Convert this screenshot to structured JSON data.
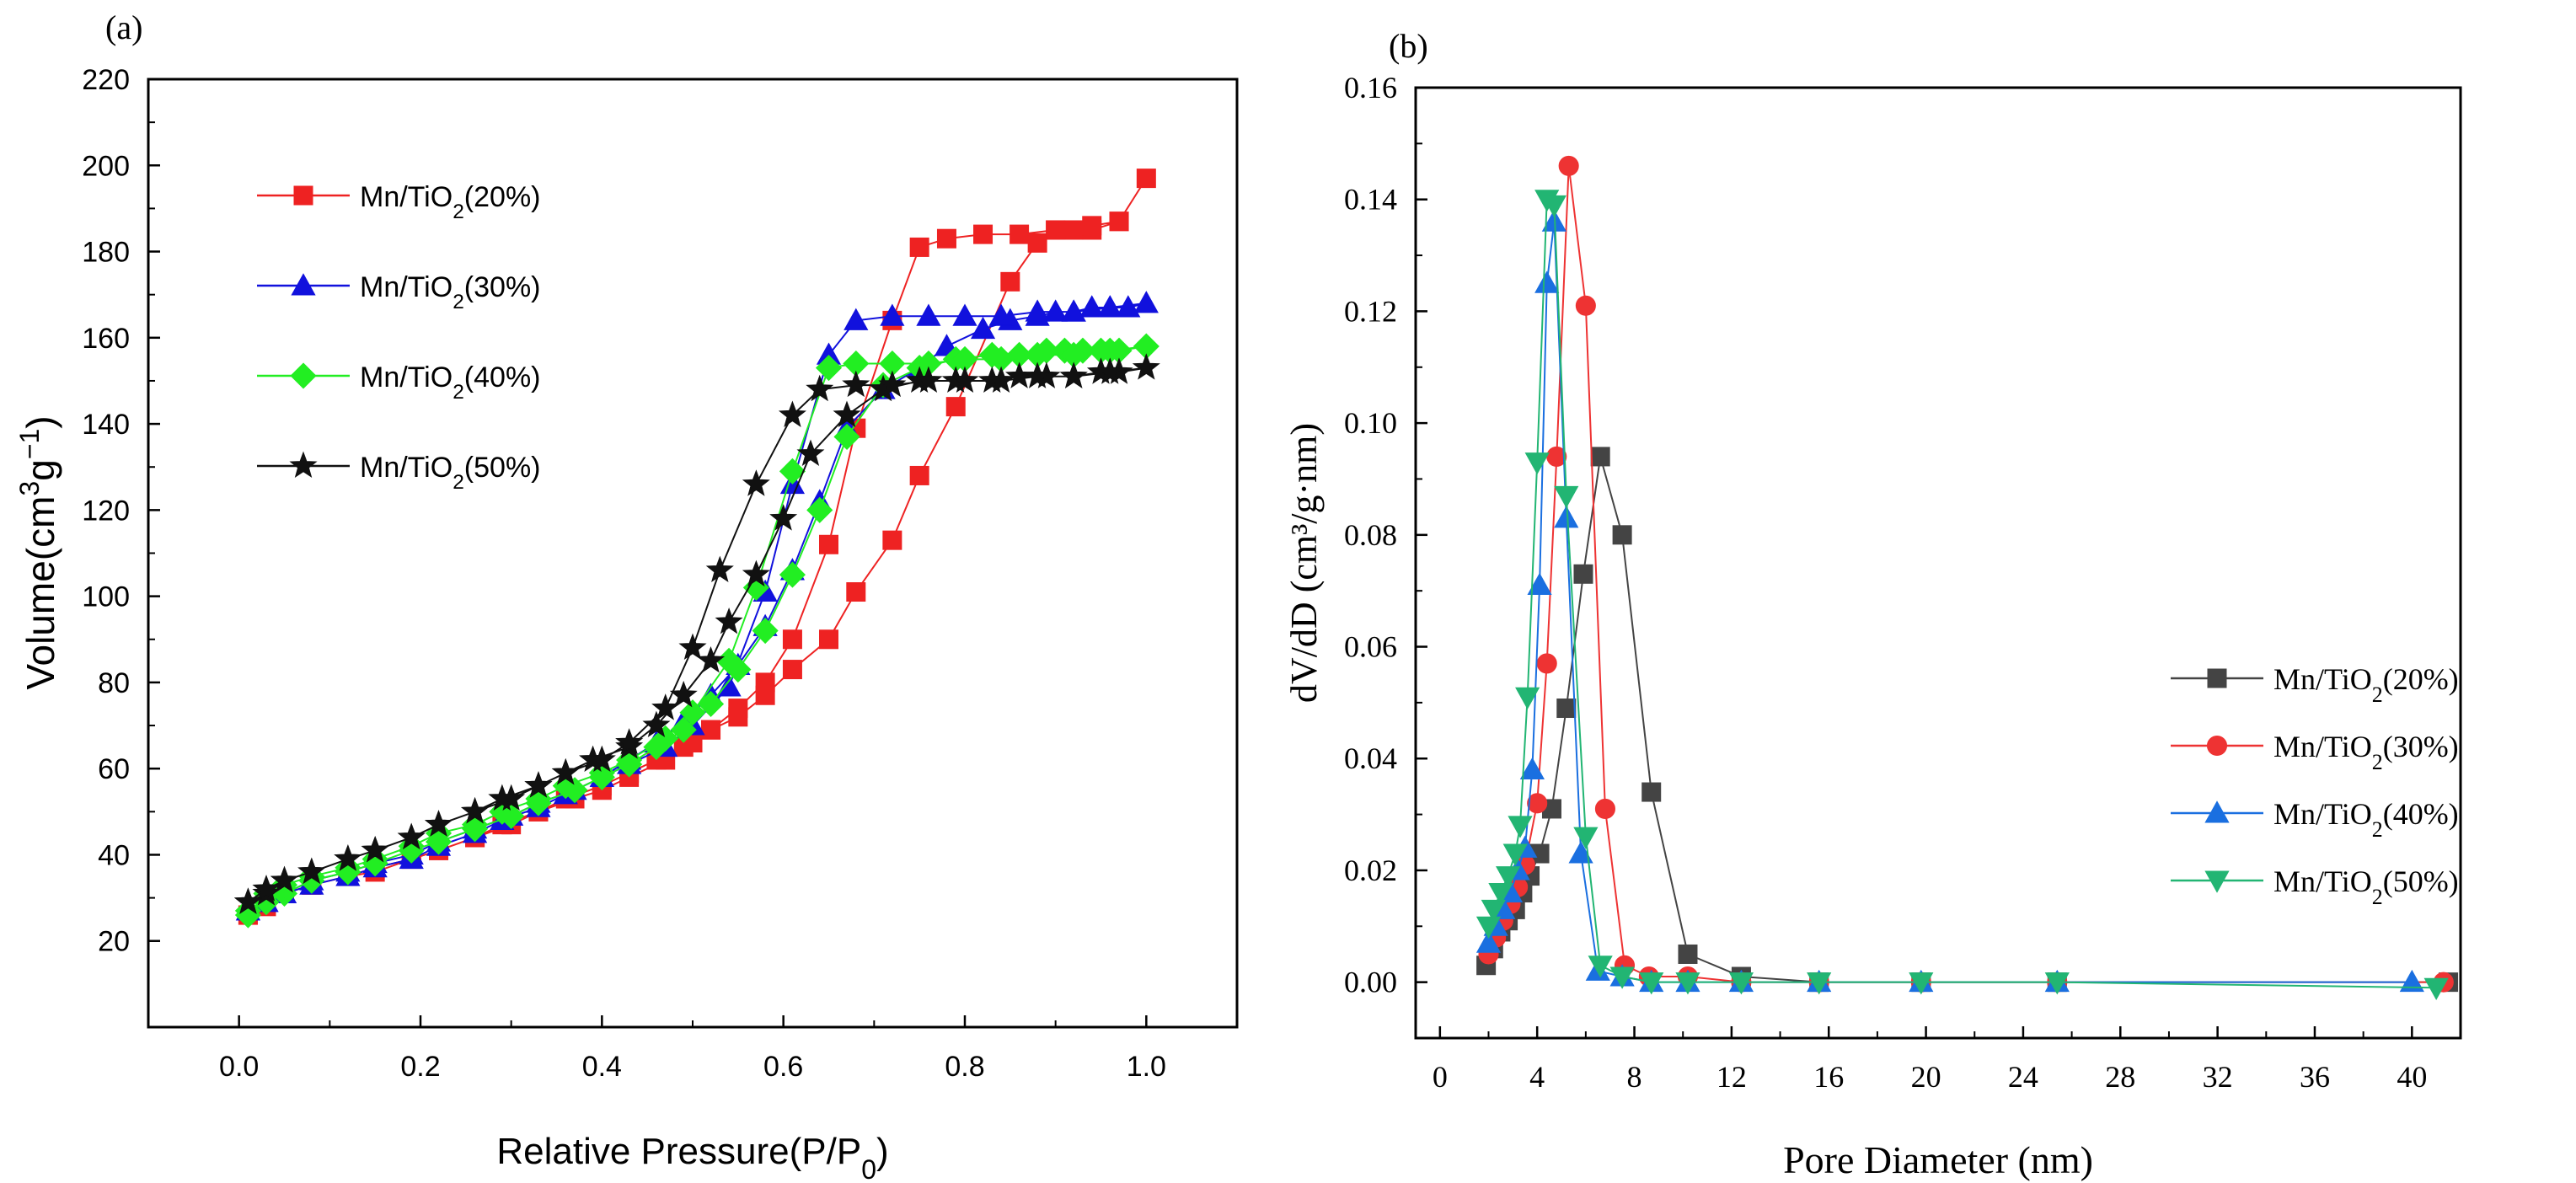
{
  "chart_data": [
    {
      "type": "line",
      "panel_label": "(a)",
      "xlabel": "Relative Pressure(P/P",
      "xlabel_sub": "0",
      "xlabel_tail": ")",
      "ylabel": "Volume(cm",
      "ylabel_sup": "3",
      "ylabel_mid": "g",
      "ylabel_sup2": "−1",
      "ylabel_tail": ")",
      "xlim": [
        -0.1,
        1.1
      ],
      "ylim": [
        0,
        220
      ],
      "xticks": [
        0.0,
        0.2,
        0.4,
        0.6,
        0.8,
        1.0
      ],
      "xtick_labels": [
        "0.0",
        "0.2",
        "0.4",
        "0.6",
        "0.8",
        "1.0"
      ],
      "yticks": [
        20,
        40,
        60,
        80,
        100,
        120,
        140,
        160,
        180,
        200,
        220
      ],
      "ytick_labels": [
        "20",
        "40",
        "60",
        "80",
        "100",
        "120",
        "140",
        "160",
        "180",
        "200",
        "220"
      ],
      "legend_position": "upper-left",
      "series": [
        {
          "name": "Mn/TiO2(20%)",
          "label_main": "Mn/TiO",
          "label_sub": "2",
          "label_tail": "(20%)",
          "color": "#ee2222",
          "marker": "square",
          "x": [
            0.01,
            0.03,
            0.05,
            0.08,
            0.12,
            0.15,
            0.19,
            0.22,
            0.26,
            0.3,
            0.33,
            0.37,
            0.4,
            0.43,
            0.47,
            0.5,
            0.52,
            0.55,
            0.58,
            0.61,
            0.65,
            0.68,
            0.72,
            0.75,
            0.79,
            0.85,
            0.88,
            0.9,
            0.92,
            0.94,
            0.97,
            1.0,
            0.97,
            0.94,
            0.9,
            0.86,
            0.82,
            0.78,
            0.75,
            0.72,
            0.68,
            0.65,
            0.61,
            0.58,
            0.55,
            0.52,
            0.49,
            0.46,
            0.43,
            0.4,
            0.36,
            0.33,
            0.29,
            0.26,
            0.22,
            0.19,
            0.15,
            0.12,
            0.08,
            0.05,
            0.03,
            0.01
          ],
          "y": [
            26,
            28,
            31,
            33,
            35,
            37,
            39,
            41,
            44,
            47,
            50,
            53,
            55,
            58,
            62,
            66,
            69,
            72,
            77,
            83,
            90,
            101,
            113,
            128,
            144,
            173,
            182,
            185,
            185,
            185,
            187,
            197,
            187,
            186,
            185,
            184,
            184,
            183,
            181,
            164,
            139,
            112,
            90,
            80,
            74,
            69,
            65,
            62,
            59,
            56,
            53,
            50,
            47,
            44,
            41,
            39,
            36,
            35,
            33,
            31,
            29,
            26
          ]
        },
        {
          "name": "Mn/TiO2(30%)",
          "label_main": "Mn/TiO",
          "label_sub": "2",
          "label_tail": "(30%)",
          "color": "#1111dd",
          "marker": "triangle-up",
          "x": [
            0.01,
            0.03,
            0.05,
            0.08,
            0.12,
            0.15,
            0.19,
            0.22,
            0.26,
            0.3,
            0.33,
            0.37,
            0.4,
            0.43,
            0.46,
            0.49,
            0.52,
            0.55,
            0.58,
            0.61,
            0.64,
            0.67,
            0.71,
            0.75,
            0.78,
            0.82,
            0.85,
            0.88,
            0.9,
            0.92,
            0.94,
            0.96,
            0.98,
            1.0,
            0.96,
            0.92,
            0.88,
            0.84,
            0.8,
            0.76,
            0.72,
            0.68,
            0.65,
            0.61,
            0.58,
            0.54,
            0.5,
            0.47,
            0.43,
            0.4,
            0.36,
            0.33,
            0.29,
            0.26,
            0.22,
            0.19,
            0.15,
            0.12,
            0.08,
            0.05,
            0.03,
            0.01
          ],
          "y": [
            27,
            29,
            31,
            34,
            36,
            38,
            40,
            43,
            46,
            49,
            52,
            55,
            58,
            62,
            66,
            71,
            77,
            84,
            93,
            106,
            122,
            139,
            148,
            153,
            158,
            162,
            164,
            165,
            166,
            166,
            167,
            167,
            167,
            168,
            167,
            166,
            166,
            165,
            165,
            165,
            165,
            164,
            156,
            126,
            101,
            79,
            70,
            65,
            61,
            58,
            54,
            51,
            48,
            45,
            42,
            39,
            37,
            35,
            33,
            31,
            29,
            27
          ]
        },
        {
          "name": "Mn/TiO2(40%)",
          "label_main": "Mn/TiO",
          "label_sub": "2",
          "label_tail": "(40%)",
          "color": "#22ee22",
          "marker": "diamond",
          "x": [
            0.01,
            0.03,
            0.05,
            0.08,
            0.12,
            0.15,
            0.19,
            0.22,
            0.26,
            0.3,
            0.33,
            0.37,
            0.4,
            0.43,
            0.46,
            0.49,
            0.52,
            0.55,
            0.58,
            0.61,
            0.64,
            0.67,
            0.71,
            0.75,
            0.79,
            0.83,
            0.86,
            0.89,
            0.91,
            0.93,
            0.95,
            0.97,
            1.0,
            0.96,
            0.92,
            0.88,
            0.84,
            0.8,
            0.76,
            0.72,
            0.68,
            0.65,
            0.61,
            0.57,
            0.54,
            0.5,
            0.47,
            0.43,
            0.4,
            0.36,
            0.33,
            0.29,
            0.26,
            0.22,
            0.19,
            0.15,
            0.12,
            0.08,
            0.05,
            0.03,
            0.01
          ],
          "y": [
            27,
            29,
            31,
            34,
            36,
            38,
            41,
            43,
            46,
            49,
            52,
            55,
            58,
            61,
            65,
            69,
            75,
            83,
            92,
            105,
            120,
            137,
            149,
            153,
            155,
            156,
            156,
            157,
            157,
            157,
            157,
            157,
            158,
            157,
            156,
            156,
            155,
            155,
            154,
            154,
            154,
            153,
            129,
            102,
            85,
            73,
            67,
            62,
            59,
            56,
            53,
            50,
            47,
            45,
            42,
            39,
            37,
            35,
            33,
            31,
            26
          ]
        },
        {
          "name": "Mn/TiO2(50%)",
          "label_main": "Mn/TiO",
          "label_sub": "2",
          "label_tail": "(50%)",
          "color": "#111111",
          "marker": "star",
          "x": [
            0.01,
            0.03,
            0.05,
            0.08,
            0.12,
            0.15,
            0.19,
            0.22,
            0.26,
            0.3,
            0.33,
            0.36,
            0.39,
            0.43,
            0.46,
            0.49,
            0.52,
            0.54,
            0.57,
            0.6,
            0.63,
            0.67,
            0.71,
            0.75,
            0.79,
            0.83,
            0.86,
            0.89,
            0.92,
            0.95,
            0.97,
            1.0,
            0.96,
            0.92,
            0.88,
            0.84,
            0.8,
            0.76,
            0.72,
            0.68,
            0.64,
            0.61,
            0.57,
            0.53,
            0.5,
            0.47,
            0.43,
            0.4,
            0.36,
            0.33,
            0.29,
            0.26,
            0.22,
            0.19,
            0.15,
            0.12,
            0.08,
            0.05,
            0.03,
            0.01
          ],
          "y": [
            29,
            31,
            34,
            36,
            39,
            41,
            44,
            47,
            50,
            53,
            56,
            59,
            62,
            65,
            70,
            77,
            85,
            94,
            105,
            118,
            133,
            142,
            148,
            150,
            150,
            150,
            151,
            151,
            151,
            152,
            152,
            153,
            152,
            151,
            151,
            150,
            150,
            150,
            149,
            149,
            148,
            142,
            126,
            106,
            88,
            74,
            66,
            62,
            59,
            56,
            53,
            50,
            47,
            44,
            41,
            39,
            36,
            34,
            32,
            29
          ]
        }
      ]
    },
    {
      "type": "line",
      "panel_label": "(b)",
      "xlabel": "Pore Diameter (nm)",
      "ylabel": "dV/dD (cm³/g·nm)",
      "xlim": [
        -1,
        42
      ],
      "ylim": [
        -0.01,
        0.16
      ],
      "xticks": [
        0,
        4,
        8,
        12,
        16,
        20,
        24,
        28,
        32,
        36,
        40
      ],
      "xtick_labels": [
        "0",
        "4",
        "8",
        "12",
        "16",
        "20",
        "24",
        "28",
        "32",
        "36",
        "40"
      ],
      "yticks": [
        0.0,
        0.02,
        0.04,
        0.06,
        0.08,
        0.1,
        0.12,
        0.14,
        0.16
      ],
      "ytick_labels": [
        "0.00",
        "0.02",
        "0.04",
        "0.06",
        "0.08",
        "0.10",
        "0.12",
        "0.14",
        "0.16"
      ],
      "legend_position": "lower-right",
      "series": [
        {
          "name": "Mn/TiO2(20%)",
          "label_main": "Mn/TiO",
          "label_sub": "2",
          "label_tail": "(20%)",
          "color": "#444444",
          "marker": "square",
          "x": [
            1.9,
            2.2,
            2.5,
            2.8,
            3.1,
            3.4,
            3.7,
            4.1,
            4.6,
            5.2,
            5.9,
            6.6,
            7.5,
            8.7,
            10.2,
            12.4,
            15.6,
            19.8,
            25.4,
            41.5
          ],
          "y": [
            0.003,
            0.006,
            0.009,
            0.011,
            0.013,
            0.016,
            0.019,
            0.023,
            0.031,
            0.049,
            0.073,
            0.094,
            0.08,
            0.034,
            0.005,
            0.001,
            0.0,
            0.0,
            0.0,
            0.0
          ]
        },
        {
          "name": "Mn/TiO2(30%)",
          "label_main": "Mn/TiO",
          "label_sub": "2",
          "label_tail": "(30%)",
          "color": "#ee3333",
          "marker": "circle",
          "x": [
            2.0,
            2.3,
            2.6,
            2.9,
            3.2,
            3.5,
            4.0,
            4.4,
            4.8,
            5.3,
            6.0,
            6.8,
            7.6,
            8.6,
            10.2,
            12.4,
            15.6,
            19.8,
            25.4,
            41.3
          ],
          "y": [
            0.005,
            0.008,
            0.011,
            0.014,
            0.017,
            0.021,
            0.032,
            0.057,
            0.094,
            0.146,
            0.121,
            0.031,
            0.003,
            0.001,
            0.001,
            0.0,
            0.0,
            0.0,
            0.0,
            0.0
          ]
        },
        {
          "name": "Mn/TiO2(40%)",
          "label_main": "Mn/TiO",
          "label_sub": "2",
          "label_tail": "(40%)",
          "color": "#1a6fe0",
          "marker": "triangle-up",
          "x": [
            2.0,
            2.3,
            2.6,
            2.9,
            3.2,
            3.5,
            3.8,
            4.1,
            4.4,
            4.7,
            5.2,
            5.8,
            6.5,
            7.5,
            8.7,
            10.2,
            12.4,
            15.6,
            19.8,
            25.4,
            40.0
          ],
          "y": [
            0.007,
            0.01,
            0.013,
            0.016,
            0.02,
            0.024,
            0.038,
            0.071,
            0.125,
            0.136,
            0.083,
            0.023,
            0.002,
            0.001,
            0.0,
            0.0,
            0.0,
            0.0,
            0.0,
            0.0,
            0.0
          ]
        },
        {
          "name": "Mn/TiO2(50%)",
          "label_main": "Mn/TiO",
          "label_sub": "2",
          "label_tail": "(50%)",
          "color": "#22b573",
          "marker": "triangle-down",
          "x": [
            2.0,
            2.2,
            2.5,
            2.8,
            3.1,
            3.3,
            3.6,
            4.0,
            4.4,
            4.7,
            5.2,
            6.0,
            6.6,
            7.5,
            8.7,
            10.2,
            12.4,
            15.6,
            19.8,
            25.4,
            41.0
          ],
          "y": [
            0.01,
            0.013,
            0.016,
            0.019,
            0.023,
            0.028,
            0.051,
            0.093,
            0.14,
            0.139,
            0.087,
            0.026,
            0.003,
            0.001,
            0.0,
            0.0,
            0.0,
            0.0,
            0.0,
            0.0,
            -0.001
          ]
        }
      ]
    }
  ]
}
